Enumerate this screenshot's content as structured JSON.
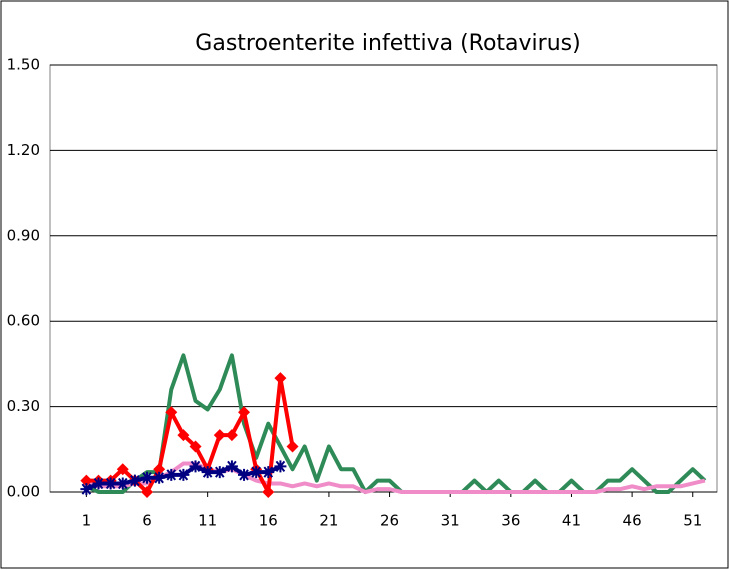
{
  "chart_data": {
    "type": "line",
    "title": "Gastroenterite infettiva (Rotavirus)",
    "x": [
      1,
      2,
      3,
      4,
      5,
      6,
      7,
      8,
      9,
      10,
      11,
      12,
      13,
      14,
      15,
      16,
      17,
      18,
      19,
      20,
      21,
      22,
      23,
      24,
      25,
      26,
      27,
      28,
      29,
      30,
      31,
      32,
      33,
      34,
      35,
      36,
      37,
      38,
      39,
      40,
      41,
      42,
      43,
      44,
      45,
      46,
      47,
      48,
      49,
      50,
      51,
      52
    ],
    "xlim": [
      -2,
      53
    ],
    "xticks": [
      1,
      6,
      11,
      16,
      21,
      26,
      31,
      36,
      41,
      46,
      51
    ],
    "ylim": [
      0,
      1.5
    ],
    "yticks": [
      {
        "value": 0,
        "label": "0.00"
      },
      {
        "value": 0.3,
        "label": "0.30"
      },
      {
        "value": 0.6,
        "label": "0.60"
      },
      {
        "value": 0.9,
        "label": "0.90"
      },
      {
        "value": 1.2,
        "label": "1.20"
      },
      {
        "value": 1.5,
        "label": "1.50"
      }
    ],
    "grid": true,
    "series": [
      {
        "color": "#2e8b57",
        "marker": "none",
        "values": [
          0.02,
          0,
          0,
          0,
          0.04,
          0.07,
          0.07,
          0.36,
          0.48,
          0.32,
          0.29,
          0.36,
          0.48,
          0.24,
          0.12,
          0.24,
          0.16,
          0.08,
          0.16,
          0.04,
          0.16,
          0.08,
          0.08,
          0,
          0.04,
          0.04,
          0,
          0,
          0,
          0,
          0,
          0,
          0.04,
          0,
          0.04,
          0,
          0,
          0.04,
          0,
          0,
          0.04,
          0,
          0,
          0.04,
          0.04,
          0.08,
          0.04,
          0,
          0,
          0.04,
          0.08,
          0.04
        ]
      },
      {
        "color": "#f08cc8",
        "marker": "none",
        "values": [
          0.03,
          0.02,
          0.02,
          0.02,
          0.03,
          0.03,
          0.05,
          0.07,
          0.1,
          0.1,
          0.08,
          0.07,
          0.08,
          0.06,
          0.04,
          0.03,
          0.03,
          0.02,
          0.03,
          0.02,
          0.03,
          0.02,
          0.02,
          0,
          0.01,
          0.01,
          0,
          0,
          0,
          0,
          0,
          0,
          0,
          0,
          0,
          0,
          0,
          0,
          0,
          0,
          0,
          0,
          0,
          0.01,
          0.01,
          0.02,
          0.01,
          0.02,
          0.02,
          0.02,
          0.03,
          0.04
        ]
      },
      {
        "color": "#ff0000",
        "marker": "diamond",
        "values": [
          0.04,
          0.04,
          0.04,
          0.08,
          0.04,
          0,
          0.08,
          0.28,
          0.2,
          0.16,
          0.08,
          0.2,
          0.2,
          0.28,
          0.08,
          0,
          0.4,
          0.16,
          null,
          null,
          null,
          null,
          null,
          null,
          null,
          null,
          null,
          null,
          null,
          null,
          null,
          null,
          null,
          null,
          null,
          null,
          null,
          null,
          null,
          null,
          null,
          null,
          null,
          null,
          null,
          null,
          null,
          null,
          null,
          null,
          null,
          null
        ]
      },
      {
        "color": "#000080",
        "marker": "asterisk",
        "values": [
          0.01,
          0.03,
          0.03,
          0.03,
          0.04,
          0.05,
          0.05,
          0.06,
          0.06,
          0.09,
          0.07,
          0.07,
          0.09,
          0.06,
          0.07,
          0.07,
          0.09,
          null,
          null,
          null,
          null,
          null,
          null,
          null,
          null,
          null,
          null,
          null,
          null,
          null,
          null,
          null,
          null,
          null,
          null,
          null,
          null,
          null,
          null,
          null,
          null,
          null,
          null,
          null,
          null,
          null,
          null,
          null,
          null,
          null,
          null,
          null
        ]
      }
    ]
  }
}
